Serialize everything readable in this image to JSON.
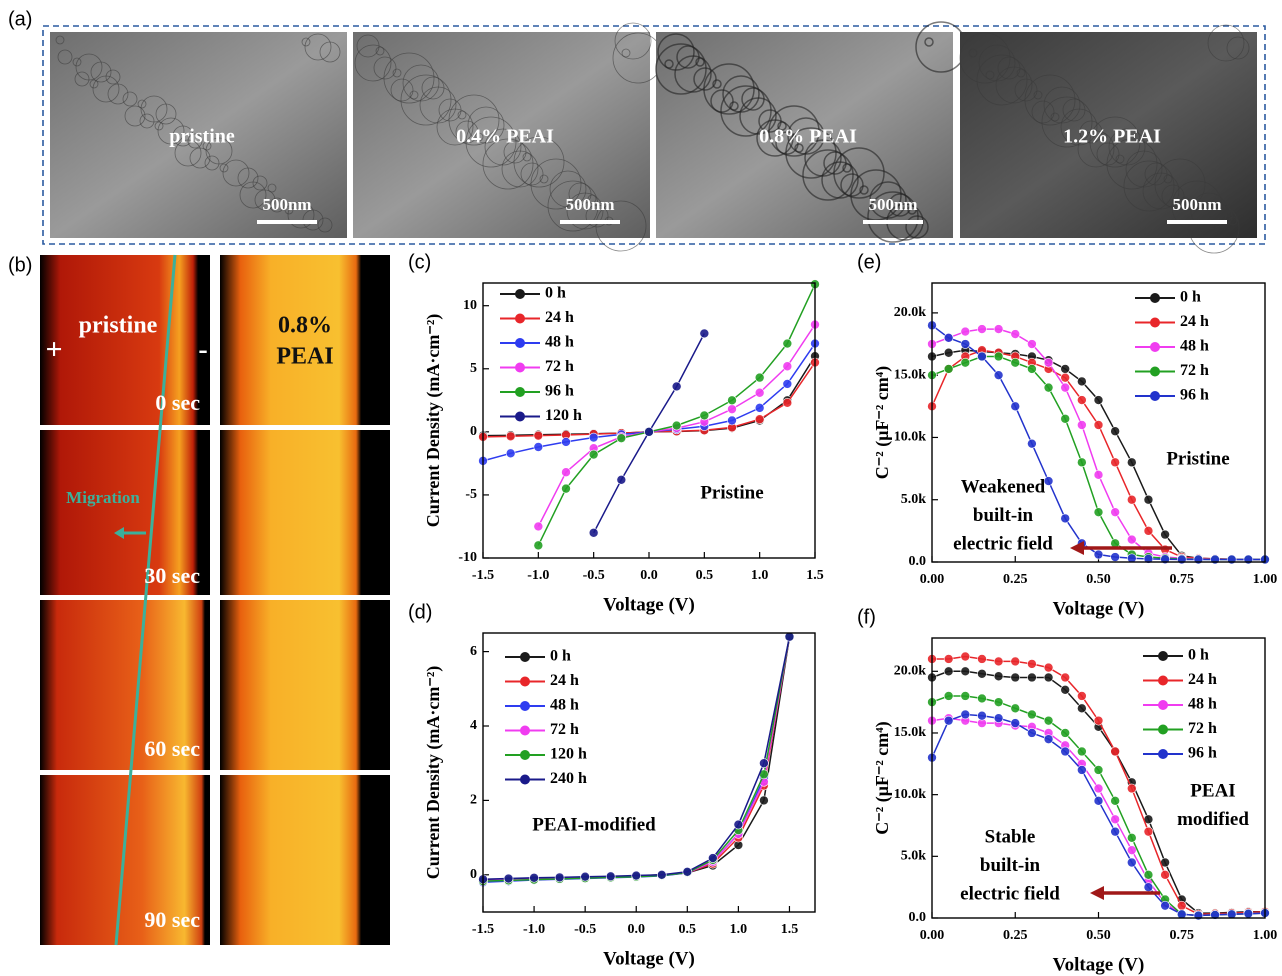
{
  "panel_a": {
    "label": "(a)",
    "images": [
      {
        "label": "pristine",
        "scale_bar": "500nm"
      },
      {
        "label": "0.4% PEAI",
        "scale_bar": "500nm"
      },
      {
        "label": "0.8% PEAI",
        "scale_bar": "500nm"
      },
      {
        "label": "1.2% PEAI",
        "scale_bar": "500nm"
      }
    ]
  },
  "panel_b": {
    "label": "(b)",
    "left_title": "pristine",
    "plus": "+",
    "minus": "-",
    "times": [
      "0 sec",
      "30 sec",
      "60 sec",
      "90 sec"
    ],
    "arrow_label": "Migration",
    "right_title": [
      "0.8%",
      "PEAI"
    ]
  },
  "chart_data": [
    {
      "type": "line",
      "panel": "(c)",
      "x_label": "Voltage (V)",
      "y_label": "Current Density (mA·cm⁻²)",
      "legend": "upper left",
      "annotations": [
        [
          "Pristine"
        ]
      ],
      "xlim": [
        -1.5,
        1.5
      ],
      "ylim": [
        -10,
        11.8
      ],
      "xticks": [
        -1.5,
        {
          "value": -1,
          "label": "-1.0"
        },
        -0.5,
        {
          "value": 0,
          "label": "0.0"
        },
        0.5,
        {
          "value": 1,
          "label": "1.0"
        },
        1.5
      ],
      "yticks": [
        -10,
        -5,
        0,
        5,
        10
      ],
      "x": [
        -1.5,
        -1.25,
        -1,
        -0.75,
        -0.5,
        -0.25,
        0,
        0.25,
        0.5,
        0.75,
        1,
        1.25,
        1.5
      ],
      "series": [
        {
          "name": "0 h",
          "color": "#1a1a1a",
          "values": [
            -0.3,
            -0.27,
            -0.23,
            -0.19,
            -0.15,
            -0.1,
            0,
            0.03,
            0.1,
            0.3,
            0.9,
            2.5,
            6
          ]
        },
        {
          "name": "24 h",
          "color": "#e8262a",
          "values": [
            -0.4,
            -0.35,
            -0.3,
            -0.25,
            -0.18,
            -0.1,
            0,
            0.04,
            0.12,
            0.35,
            1.0,
            2.3,
            5.5
          ]
        },
        {
          "name": "48 h",
          "color": "#2e3cf0",
          "values": [
            -2.3,
            -1.7,
            -1.2,
            -0.8,
            -0.45,
            -0.2,
            0,
            0.2,
            0.45,
            0.9,
            1.9,
            3.8,
            7
          ]
        },
        {
          "name": "72 h",
          "color": "#f03cf0",
          "values": [
            null,
            null,
            -7.5,
            -3.2,
            -1.3,
            -0.4,
            0,
            0.3,
            0.8,
            1.8,
            3.1,
            5.2,
            8.5
          ]
        },
        {
          "name": "96 h",
          "color": "#22a022",
          "values": [
            null,
            null,
            -9,
            -4.5,
            -1.8,
            -0.5,
            0,
            0.5,
            1.3,
            2.5,
            4.3,
            7,
            11.7
          ]
        },
        {
          "name": "120 h",
          "color": "#1a1a8a",
          "values": [
            null,
            null,
            null,
            null,
            -8,
            -3.8,
            0,
            3.6,
            7.8,
            null,
            null,
            null,
            null
          ]
        }
      ]
    },
    {
      "type": "line",
      "panel": "(d)",
      "x_label": "Voltage (V)",
      "y_label": "Current Density (mA·cm⁻²)",
      "legend": "upper left",
      "annotations": [
        [
          "PEAI-modified"
        ]
      ],
      "xlim": [
        -1.5,
        1.75
      ],
      "ylim": [
        -1,
        6.5
      ],
      "xticks": [
        -1.5,
        {
          "value": -1,
          "label": "-1.0"
        },
        -0.5,
        {
          "value": 0,
          "label": "0.0"
        },
        0.5,
        {
          "value": 1,
          "label": "1.0"
        },
        1.5
      ],
      "yticks": [
        0,
        2,
        4,
        6
      ],
      "x": [
        -1.5,
        -1.25,
        -1,
        -0.75,
        -0.5,
        -0.25,
        0,
        0.25,
        0.5,
        0.75,
        1,
        1.25,
        1.5
      ],
      "series": [
        {
          "name": "0 h",
          "color": "#1a1a1a",
          "values": [
            -0.15,
            -0.13,
            -0.11,
            -0.09,
            -0.07,
            -0.05,
            -0.03,
            0,
            0.05,
            0.25,
            0.8,
            2.0,
            6.4
          ]
        },
        {
          "name": "24 h",
          "color": "#e8262a",
          "values": [
            -0.18,
            -0.15,
            -0.13,
            -0.11,
            -0.09,
            -0.07,
            -0.05,
            -0.02,
            0.05,
            0.3,
            1.0,
            2.4,
            6.4
          ]
        },
        {
          "name": "48 h",
          "color": "#2e3cf0",
          "values": [
            -0.2,
            -0.17,
            -0.14,
            -0.12,
            -0.1,
            -0.08,
            -0.06,
            -0.03,
            0.05,
            0.35,
            1.1,
            2.6,
            6.4
          ]
        },
        {
          "name": "72 h",
          "color": "#f03cf0",
          "values": [
            -0.16,
            -0.14,
            -0.12,
            -0.1,
            -0.08,
            -0.06,
            -0.04,
            -0.01,
            0.06,
            0.35,
            1.1,
            2.5,
            6.4
          ]
        },
        {
          "name": "120 h",
          "color": "#22a022",
          "values": [
            -0.17,
            -0.15,
            -0.13,
            -0.11,
            -0.09,
            -0.07,
            -0.05,
            -0.02,
            0.06,
            0.4,
            1.2,
            2.7,
            6.4
          ]
        },
        {
          "name": "240 h",
          "color": "#1a1a8a",
          "values": [
            -0.12,
            -0.1,
            -0.08,
            -0.07,
            -0.05,
            -0.04,
            -0.02,
            0,
            0.08,
            0.45,
            1.35,
            3.0,
            6.4
          ]
        }
      ]
    },
    {
      "type": "line",
      "panel": "(e)",
      "x_label": "Voltage (V)",
      "y_label": "C⁻² (μF⁻² cm⁴)",
      "legend": "upper right",
      "annotations": [
        [
          "Weakened",
          "built-in",
          "electric field"
        ],
        [
          "Pristine"
        ]
      ],
      "xlim": [
        0,
        1
      ],
      "ylim": [
        0,
        22400
      ],
      "xticks": [
        {
          "value": 0,
          "label": "0.00"
        },
        0.25,
        {
          "value": 0.5,
          "label": "0.50"
        },
        0.75,
        {
          "value": 1,
          "label": "1.00"
        }
      ],
      "yticks": [
        {
          "value": 0,
          "label": "0.0"
        },
        {
          "value": 5000,
          "label": "5.0k"
        },
        {
          "value": 10000,
          "label": "10.0k"
        },
        {
          "value": 15000,
          "label": "15.0k"
        },
        {
          "value": 20000,
          "label": "20.0k"
        }
      ],
      "x": [
        0,
        0.05,
        0.1,
        0.15,
        0.2,
        0.25,
        0.3,
        0.35,
        0.4,
        0.45,
        0.5,
        0.55,
        0.6,
        0.65,
        0.7,
        0.75,
        0.8,
        0.85,
        0.9,
        0.95,
        1
      ],
      "series": [
        {
          "name": "0 h",
          "color": "#1a1a1a",
          "values": [
            16500,
            16800,
            17000,
            16900,
            16800,
            16700,
            16500,
            16200,
            15500,
            14500,
            13000,
            10500,
            8000,
            5000,
            2200,
            500,
            300,
            250,
            220,
            200,
            200
          ]
        },
        {
          "name": "24 h",
          "color": "#e8262a",
          "values": [
            12500,
            15500,
            16500,
            17000,
            16800,
            16500,
            16000,
            15500,
            14800,
            13000,
            11000,
            8000,
            5000,
            2500,
            1000,
            400,
            300,
            250,
            220,
            200,
            200
          ]
        },
        {
          "name": "48 h",
          "color": "#f03cf0",
          "values": [
            17500,
            18000,
            18500,
            18700,
            18700,
            18300,
            17500,
            16000,
            14000,
            11000,
            7000,
            4000,
            1800,
            700,
            400,
            300,
            250,
            220,
            200,
            200,
            200
          ]
        },
        {
          "name": "72 h",
          "color": "#22a022",
          "values": [
            15000,
            15500,
            16000,
            16500,
            16500,
            16000,
            15500,
            14000,
            11500,
            8000,
            4000,
            1500,
            600,
            400,
            300,
            250,
            220,
            200,
            200,
            200,
            200
          ]
        },
        {
          "name": "96 h",
          "color": "#2233cc",
          "values": [
            19000,
            18000,
            17500,
            16500,
            15000,
            12500,
            9500,
            6500,
            3500,
            1500,
            600,
            400,
            300,
            250,
            220,
            200,
            200,
            200,
            200,
            200,
            200
          ]
        }
      ]
    },
    {
      "type": "line",
      "panel": "(f)",
      "x_label": "Voltage (V)",
      "y_label": "C⁻² (μF⁻² cm⁴)",
      "legend": "upper right",
      "annotations": [
        [
          "Stable",
          "built-in",
          "electric field"
        ],
        [
          "PEAI",
          "modified"
        ]
      ],
      "xlim": [
        0,
        1
      ],
      "ylim": [
        0,
        22700
      ],
      "xticks": [
        {
          "value": 0,
          "label": "0.00"
        },
        0.25,
        {
          "value": 0.5,
          "label": "0.50"
        },
        0.75,
        {
          "value": 1,
          "label": "1.00"
        }
      ],
      "yticks": [
        {
          "value": 0,
          "label": "0.0"
        },
        {
          "value": 5000,
          "label": "5.0k"
        },
        {
          "value": 10000,
          "label": "10.0k"
        },
        {
          "value": 15000,
          "label": "15.0k"
        },
        {
          "value": 20000,
          "label": "20.0k"
        }
      ],
      "x": [
        0,
        0.05,
        0.1,
        0.15,
        0.2,
        0.25,
        0.3,
        0.35,
        0.4,
        0.45,
        0.5,
        0.55,
        0.6,
        0.65,
        0.7,
        0.75,
        0.8,
        0.85,
        0.9,
        0.95,
        1
      ],
      "series": [
        {
          "name": "0 h",
          "color": "#1a1a1a",
          "values": [
            19500,
            20000,
            20000,
            19800,
            19600,
            19500,
            19500,
            19500,
            18500,
            17000,
            15500,
            13500,
            11000,
            8000,
            4500,
            1500,
            400,
            400,
            450,
            500,
            500
          ]
        },
        {
          "name": "24 h",
          "color": "#e8262a",
          "values": [
            21000,
            21000,
            21200,
            21000,
            20800,
            20800,
            20600,
            20300,
            19500,
            18000,
            16000,
            13500,
            10500,
            7000,
            3500,
            1000,
            300,
            350,
            400,
            450,
            500
          ]
        },
        {
          "name": "48 h",
          "color": "#f03cf0",
          "values": [
            16000,
            16200,
            16000,
            15800,
            15800,
            15600,
            15500,
            15000,
            14000,
            12500,
            10500,
            8000,
            5500,
            3000,
            1200,
            300,
            200,
            250,
            300,
            350,
            400
          ]
        },
        {
          "name": "72 h",
          "color": "#22a022",
          "values": [
            17500,
            18000,
            18000,
            17800,
            17500,
            17000,
            16500,
            16000,
            15000,
            13500,
            12000,
            9500,
            6500,
            3500,
            1500,
            300,
            200,
            250,
            300,
            350,
            400
          ]
        },
        {
          "name": "96 h",
          "color": "#2233cc",
          "values": [
            13000,
            16000,
            16500,
            16400,
            16200,
            15800,
            15000,
            14500,
            13500,
            12000,
            9500,
            7000,
            4500,
            2500,
            1000,
            300,
            200,
            250,
            300,
            350,
            400
          ]
        }
      ]
    }
  ]
}
